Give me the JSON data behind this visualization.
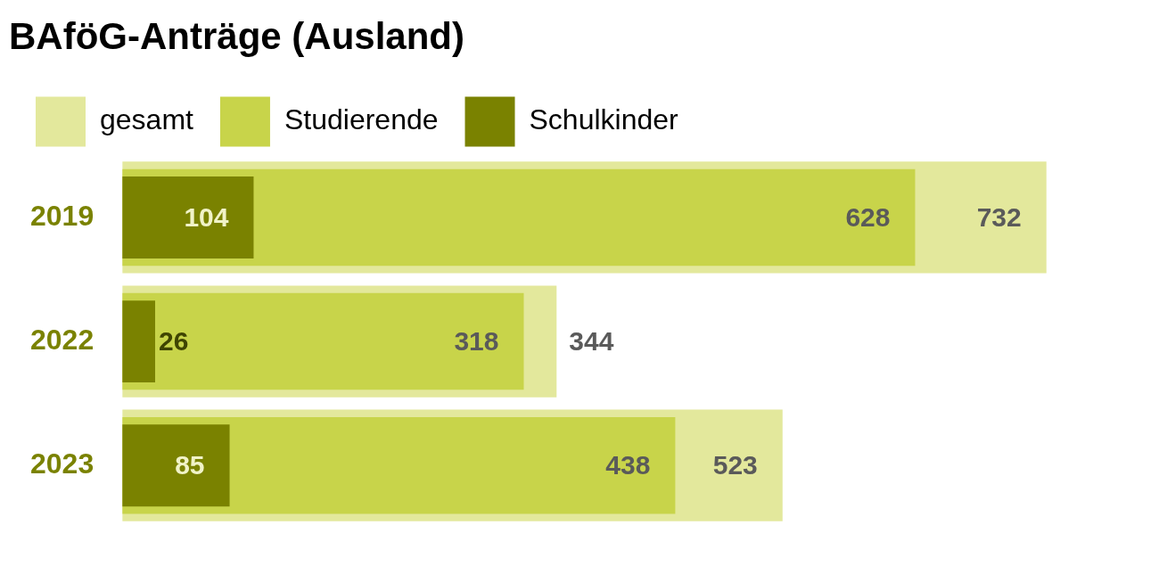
{
  "chart_data": {
    "type": "bar",
    "orientation": "horizontal",
    "title": "BAföG-Anträge (Ausland)",
    "categories": [
      "2019",
      "2022",
      "2023"
    ],
    "series": [
      {
        "name": "gesamt",
        "color": "#e3e89c",
        "values": [
          732,
          344,
          523
        ]
      },
      {
        "name": "Studierende",
        "color": "#c8d44a",
        "values": [
          628,
          318,
          438
        ]
      },
      {
        "name": "Schulkinder",
        "color": "#7a8200",
        "values": [
          104,
          26,
          85
        ]
      }
    ],
    "data_labels": true,
    "legend": "top left"
  }
}
